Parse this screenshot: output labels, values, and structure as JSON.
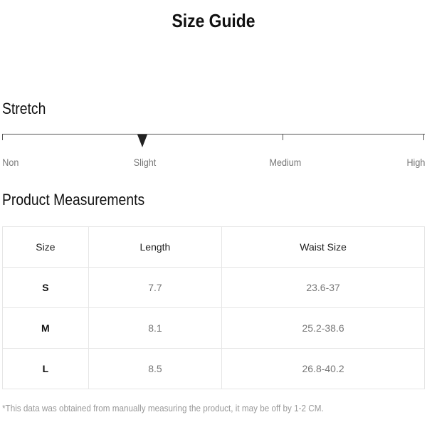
{
  "title": "Size Guide",
  "stretch": {
    "heading": "Stretch",
    "levels": [
      "Non",
      "Slight",
      "Medium",
      "High"
    ],
    "selected": "Slight"
  },
  "measurements": {
    "heading": "Product Measurements",
    "columns": [
      "Size",
      "Length",
      "Waist Size"
    ],
    "rows": [
      [
        "S",
        "7.7",
        "23.6-37"
      ],
      [
        "M",
        "8.1",
        "25.2-38.6"
      ],
      [
        "L",
        "8.5",
        "26.8-40.2"
      ]
    ]
  },
  "note": "*This data was obtained from manually measuring the product, it may be off by 1-2 CM."
}
